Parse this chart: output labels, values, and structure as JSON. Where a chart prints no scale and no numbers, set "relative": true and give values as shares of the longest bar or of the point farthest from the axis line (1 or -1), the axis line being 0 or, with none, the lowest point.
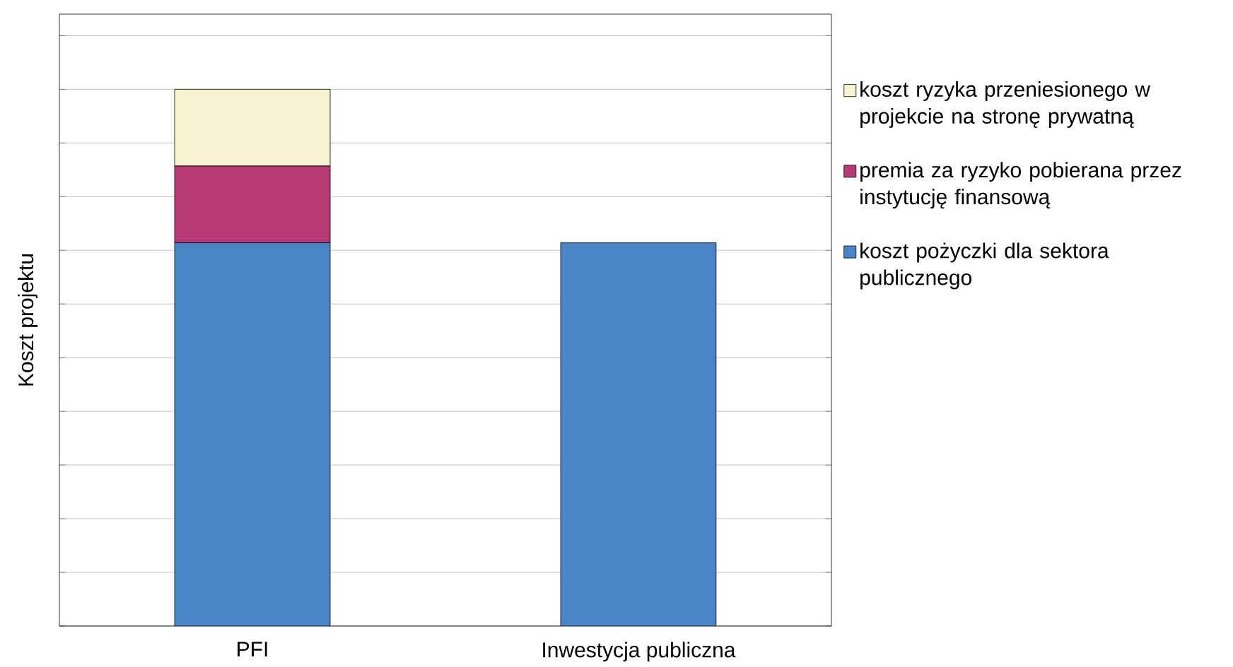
{
  "chart_data": {
    "type": "bar",
    "stacked": true,
    "relative": true,
    "ylabel": "Koszt projektu",
    "categories": [
      "PFI",
      "Inwestycja publiczna"
    ],
    "series": [
      {
        "name": "koszt pożyczki dla sektora publicznego",
        "color": "#4a86c5",
        "values": [
          0.714,
          0.714
        ]
      },
      {
        "name": "premia za ryzyko pobierana przez instytucję finansową",
        "color": "#b83a74",
        "values": [
          0.143,
          null
        ]
      },
      {
        "name": "koszt ryzyka przeniesionego w projekcie na stronę prywatną",
        "color": "#f7f2cf",
        "values": [
          0.143,
          null
        ]
      }
    ],
    "grid": "y",
    "legend": "right"
  }
}
